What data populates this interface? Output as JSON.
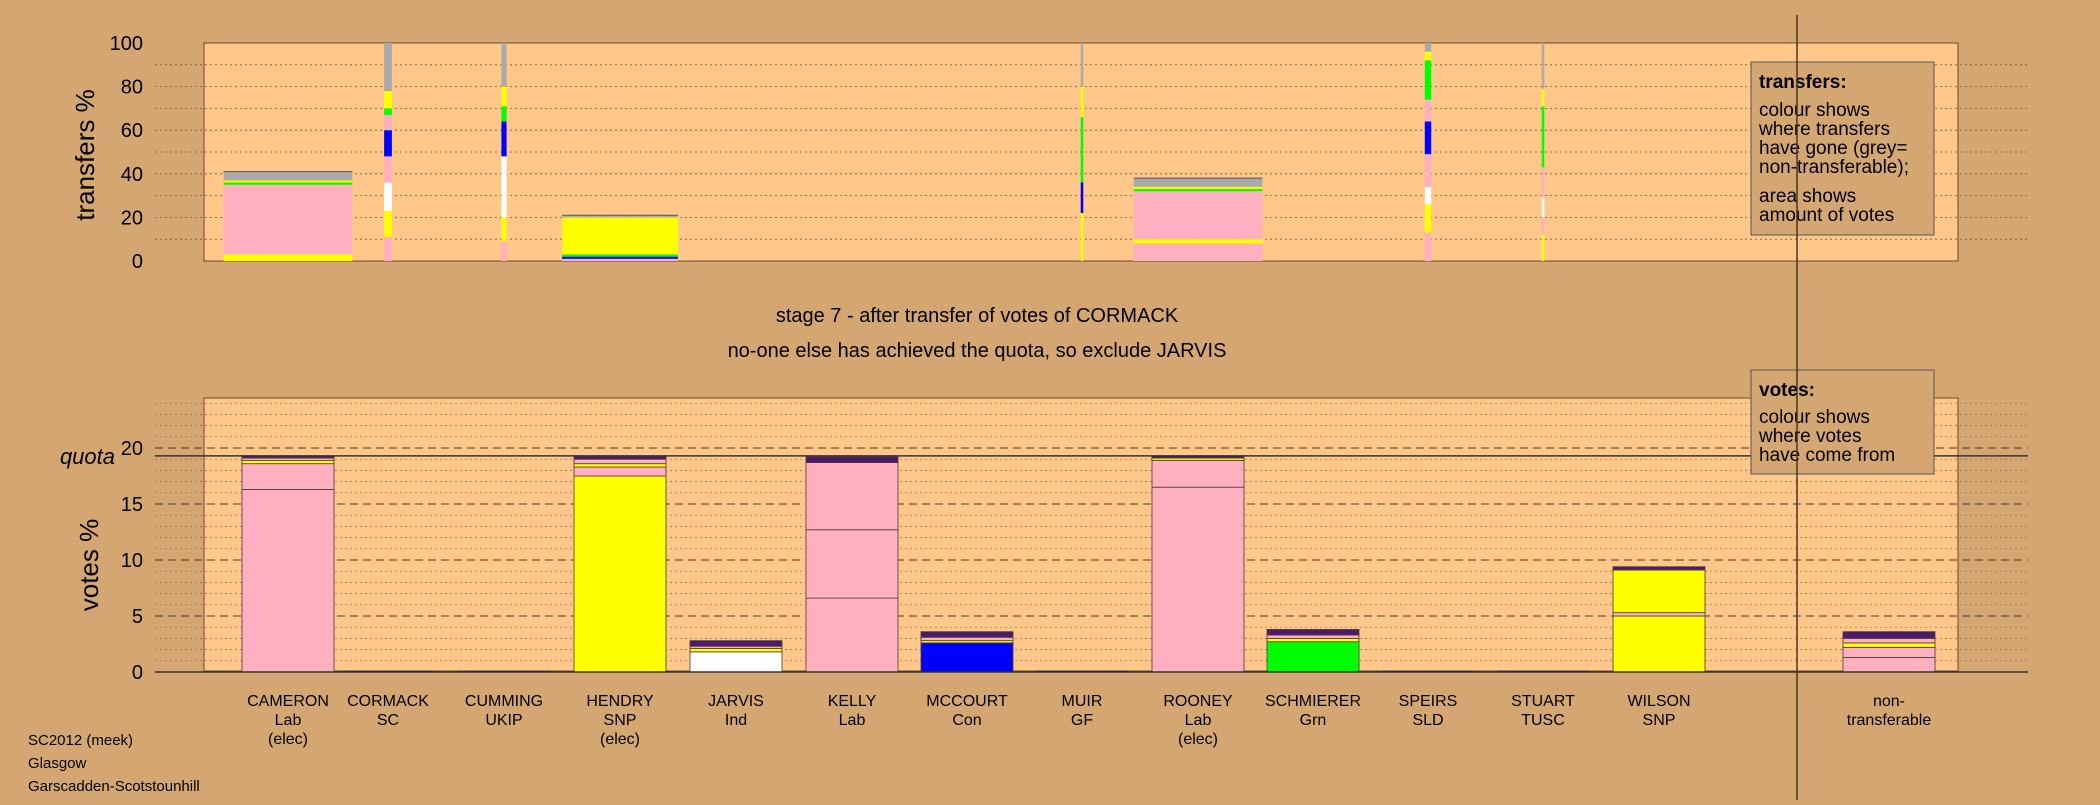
{
  "colors": {
    "background": "#d4a772",
    "panel": "#ffc88a",
    "Lab": "#ffb0c0",
    "SNP": "#ffff00",
    "Con": "#0000ff",
    "Grn": "#00ff00",
    "Ind": "#ffffff",
    "nontransferable": "#aaaaaa",
    "dark": "#4b1c6b"
  },
  "transfers_axis_label": "transfers %",
  "votes_axis_label": "votes %",
  "quota_label": "quota",
  "stage_line_1": "stage 7 - after transfer of votes of CORMACK",
  "stage_line_2": "no-one else has achieved the quota, so exclude JARVIS",
  "legend_transfers": {
    "title": "transfers:",
    "text1": [
      "colour shows",
      "where transfers",
      "have gone (grey=",
      "non-transferable);"
    ],
    "text2": [
      "area shows",
      "amount of votes"
    ]
  },
  "legend_votes": {
    "title": "votes:",
    "text1": [
      "colour shows",
      "where votes",
      "have come from"
    ]
  },
  "footer": [
    "SC2012 (meek)",
    "Glasgow",
    "Garscadden-Scotstounhill"
  ],
  "chart_data": [
    {
      "type": "bar",
      "title": "transfers",
      "ylabel": "transfers %",
      "ylim": [
        0,
        100
      ],
      "yticks": [
        0,
        20,
        40,
        60,
        80,
        100
      ],
      "columns": [
        {
          "candidate": "CAMERON",
          "width": 1.0,
          "segments": [
            {
              "party": "SNP",
              "value": 3
            },
            {
              "party": "Lab",
              "value": 22
            },
            {
              "party": "Lab",
              "value": 10
            },
            {
              "party": "Grn",
              "value": 1
            },
            {
              "party": "SNP",
              "value": 1
            },
            {
              "party": "nontransferable",
              "value": 4
            }
          ]
        },
        {
          "candidate": "CORMACK",
          "width": 0.06,
          "segments": [
            {
              "party": "Lab",
              "value": 11
            },
            {
              "party": "SNP",
              "value": 12
            },
            {
              "party": "Ind",
              "value": 13
            },
            {
              "party": "Lab",
              "value": 12
            },
            {
              "party": "Con",
              "value": 12
            },
            {
              "party": "Lab",
              "value": 7
            },
            {
              "party": "Grn",
              "value": 3
            },
            {
              "party": "SNP",
              "value": 8
            },
            {
              "party": "nontransferable",
              "value": 22
            }
          ]
        },
        {
          "candidate": "CUMMING",
          "width": 0.04,
          "segments": [
            {
              "party": "Lab",
              "value": 9
            },
            {
              "party": "SNP",
              "value": 11
            },
            {
              "party": "Ind",
              "value": 28
            },
            {
              "party": "Con",
              "value": 16
            },
            {
              "party": "Grn",
              "value": 7
            },
            {
              "party": "SNP",
              "value": 9
            },
            {
              "party": "nontransferable",
              "value": 20
            }
          ]
        },
        {
          "candidate": "HENDRY",
          "width": 0.9,
          "segments": [
            {
              "party": "Lab",
              "value": 1
            },
            {
              "party": "Con",
              "value": 1
            },
            {
              "party": "Grn",
              "value": 1
            },
            {
              "party": "SNP",
              "value": 17
            },
            {
              "party": "nontransferable",
              "value": 1
            }
          ]
        },
        {
          "candidate": "MUIR",
          "width": 0.02,
          "segments": [
            {
              "party": "SNP",
              "value": 22
            },
            {
              "party": "Con",
              "value": 14
            },
            {
              "party": "Grn",
              "value": 30
            },
            {
              "party": "SNP",
              "value": 14
            },
            {
              "party": "nontransferable",
              "value": 20
            }
          ]
        },
        {
          "candidate": "ROONEY",
          "width": 1.0,
          "segments": [
            {
              "party": "Lab",
              "value": 8
            },
            {
              "party": "SNP",
              "value": 2
            },
            {
              "party": "Lab",
              "value": 22
            },
            {
              "party": "Grn",
              "value": 1
            },
            {
              "party": "SNP",
              "value": 1
            },
            {
              "party": "nontransferable",
              "value": 4
            }
          ]
        },
        {
          "candidate": "SPEIRS",
          "width": 0.05,
          "segments": [
            {
              "party": "Lab",
              "value": 13
            },
            {
              "party": "SNP",
              "value": 13
            },
            {
              "party": "Ind",
              "value": 8
            },
            {
              "party": "Lab",
              "value": 15
            },
            {
              "party": "Con",
              "value": 15
            },
            {
              "party": "Lab",
              "value": 10
            },
            {
              "party": "Grn",
              "value": 18
            },
            {
              "party": "SNP",
              "value": 4
            },
            {
              "party": "nontransferable",
              "value": 4
            }
          ]
        },
        {
          "candidate": "STUART",
          "width": 0.02,
          "segments": [
            {
              "party": "SNP",
              "value": 12
            },
            {
              "party": "Lab",
              "value": 8
            },
            {
              "party": "Ind",
              "value": 9
            },
            {
              "party": "Lab",
              "value": 14
            },
            {
              "party": "Grn",
              "value": 28
            },
            {
              "party": "SNP",
              "value": 8
            },
            {
              "party": "nontransferable",
              "value": 21
            }
          ]
        }
      ]
    },
    {
      "type": "bar",
      "title": "votes",
      "ylabel": "votes %",
      "ylim": [
        0,
        24
      ],
      "yticks": [
        0,
        5,
        10,
        15,
        20
      ],
      "quota": 19.3,
      "candidates": [
        {
          "name": "CAMERON",
          "party": "Lab",
          "note": "(elec)",
          "segments": [
            {
              "party": "Lab",
              "value": 16.3
            },
            {
              "party": "Lab",
              "value": 2.3
            },
            {
              "party": "SNP",
              "value": 0.3
            },
            {
              "party": "Lab",
              "value": 0.2
            },
            {
              "party": "dark",
              "value": 0.2
            }
          ]
        },
        {
          "name": "CORMACK",
          "party": "SC",
          "note": "",
          "segments": []
        },
        {
          "name": "CUMMING",
          "party": "UKIP",
          "note": "",
          "segments": []
        },
        {
          "name": "HENDRY",
          "party": "SNP",
          "note": "(elec)",
          "segments": [
            {
              "party": "SNP",
              "value": 17.5
            },
            {
              "party": "Lab",
              "value": 0.8
            },
            {
              "party": "SNP",
              "value": 0.3
            },
            {
              "party": "Lab",
              "value": 0.4
            },
            {
              "party": "dark",
              "value": 0.3
            }
          ]
        },
        {
          "name": "JARVIS",
          "party": "Ind",
          "note": "",
          "segments": [
            {
              "party": "Ind",
              "value": 1.8
            },
            {
              "party": "SNP",
              "value": 0.3
            },
            {
              "party": "Lab",
              "value": 0.2
            },
            {
              "party": "dark",
              "value": 0.5
            }
          ]
        },
        {
          "name": "KELLY",
          "party": "Lab",
          "note": "",
          "segments": [
            {
              "party": "Lab",
              "value": 6.6
            },
            {
              "party": "Lab",
              "value": 6.1
            },
            {
              "party": "Lab",
              "value": 6.0
            },
            {
              "party": "dark",
              "value": 0.5
            }
          ]
        },
        {
          "name": "MCCOURT",
          "party": "Con",
          "note": "",
          "segments": [
            {
              "party": "Con",
              "value": 2.6
            },
            {
              "party": "SNP",
              "value": 0.2
            },
            {
              "party": "Lab",
              "value": 0.3
            },
            {
              "party": "dark",
              "value": 0.5
            }
          ]
        },
        {
          "name": "MUIR",
          "party": "GF",
          "note": "",
          "segments": []
        },
        {
          "name": "ROONEY",
          "party": "Lab",
          "note": "(elec)",
          "segments": [
            {
              "party": "Lab",
              "value": 16.5
            },
            {
              "party": "Lab",
              "value": 2.4
            },
            {
              "party": "SNP",
              "value": 0.2
            },
            {
              "party": "dark",
              "value": 0.2
            }
          ]
        },
        {
          "name": "SCHMIERER",
          "party": "Grn",
          "note": "",
          "segments": [
            {
              "party": "Grn",
              "value": 2.7
            },
            {
              "party": "SNP",
              "value": 0.3
            },
            {
              "party": "Lab",
              "value": 0.3
            },
            {
              "party": "dark",
              "value": 0.5
            }
          ]
        },
        {
          "name": "SPEIRS",
          "party": "SLD",
          "note": "",
          "segments": []
        },
        {
          "name": "STUART",
          "party": "TUSC",
          "note": "",
          "segments": []
        },
        {
          "name": "WILSON",
          "party": "SNP",
          "note": "",
          "segments": [
            {
              "party": "SNP",
              "value": 5.0
            },
            {
              "party": "Lab",
              "value": 0.3
            },
            {
              "party": "SNP",
              "value": 3.8
            },
            {
              "party": "dark",
              "value": 0.3
            }
          ]
        },
        {
          "name": "non-",
          "party": "transferable",
          "note": "",
          "segments": [
            {
              "party": "Lab",
              "value": 1.3
            },
            {
              "party": "Lab",
              "value": 0.9
            },
            {
              "party": "SNP",
              "value": 0.4
            },
            {
              "party": "Lab",
              "value": 0.4
            },
            {
              "party": "dark",
              "value": 0.6
            }
          ]
        }
      ]
    }
  ]
}
